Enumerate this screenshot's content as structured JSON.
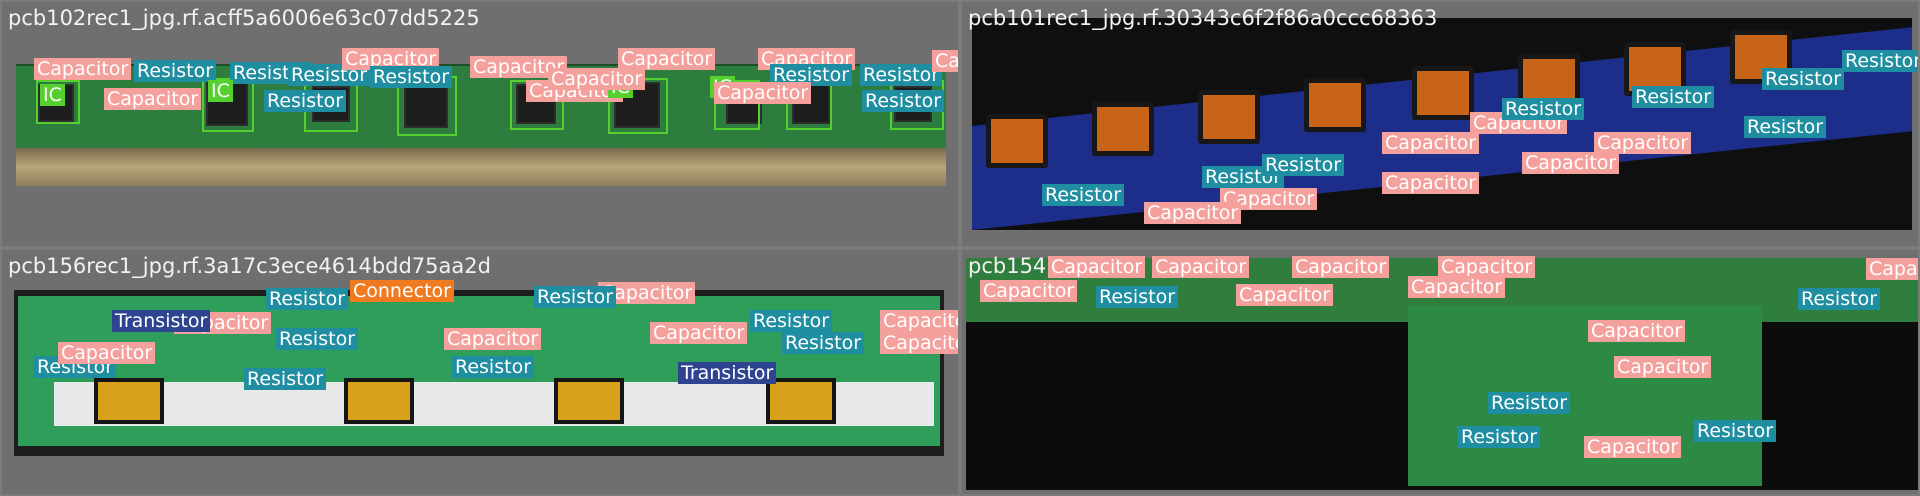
{
  "panels": [
    {
      "id": "p1",
      "title": "pcb102rec1_jpg.rf.acff5a6006e63c07dd5225",
      "labels": [
        {
          "cls": "cap",
          "text": "Capacitor"
        },
        {
          "cls": "res",
          "text": "Resistor"
        },
        {
          "cls": "res",
          "text": "Resistor"
        },
        {
          "cls": "res",
          "text": "Resistor"
        },
        {
          "cls": "cap",
          "text": "Capacitor"
        },
        {
          "cls": "cap",
          "text": "Capacitor"
        },
        {
          "cls": "cap",
          "text": "Capacitor"
        },
        {
          "cls": "cap",
          "text": "Capacitor"
        },
        {
          "cls": "res",
          "text": "Resistor"
        },
        {
          "cls": "res",
          "text": "Resistor"
        },
        {
          "cls": "cap",
          "text": "Capacitor"
        },
        {
          "cls": "res",
          "text": "Resistor"
        },
        {
          "cls": "cap",
          "text": "Capacitor"
        },
        {
          "cls": "ic",
          "text": "IC"
        },
        {
          "cls": "ic",
          "text": "IC"
        },
        {
          "cls": "ic",
          "text": "IC"
        },
        {
          "cls": "ic",
          "text": "IC"
        },
        {
          "cls": "cap",
          "text": "Capacitor"
        },
        {
          "cls": "res",
          "text": "Resistor"
        },
        {
          "cls": "cap",
          "text": "Capacitor"
        },
        {
          "cls": "res",
          "text": "Resistor"
        },
        {
          "cls": "cap",
          "text": "Capacitor"
        }
      ]
    },
    {
      "id": "p2",
      "title": "pcb101rec1_jpg.rf.30343c6f2f86a0ccc68363",
      "labels": [
        {
          "cls": "res",
          "text": "Resistor"
        },
        {
          "cls": "res",
          "text": "Resistor"
        },
        {
          "cls": "res",
          "text": "Resistor"
        },
        {
          "cls": "res",
          "text": "Resistor"
        },
        {
          "cls": "cap",
          "text": "Capacitor"
        },
        {
          "cls": "cap",
          "text": "Capacitor"
        },
        {
          "cls": "cap",
          "text": "Capacitor"
        },
        {
          "cls": "res",
          "text": "Resistor"
        },
        {
          "cls": "cap",
          "text": "Capacitor"
        },
        {
          "cls": "res",
          "text": "Resistor"
        },
        {
          "cls": "cap",
          "text": "Capacitor"
        },
        {
          "cls": "res",
          "text": "Resistor"
        },
        {
          "cls": "cap",
          "text": "Capacitor"
        },
        {
          "cls": "res",
          "text": "Resistor"
        },
        {
          "cls": "cap",
          "text": "Capacitor"
        }
      ]
    },
    {
      "id": "p3",
      "title": "pcb156rec1_jpg.rf.3a17c3ece4614bdd75aa2d",
      "labels": [
        {
          "cls": "con",
          "text": "Connector"
        },
        {
          "cls": "res",
          "text": "Resistor"
        },
        {
          "cls": "cap",
          "text": "Capacitor"
        },
        {
          "cls": "res",
          "text": "Resistor"
        },
        {
          "cls": "cap",
          "text": "Capacitor"
        },
        {
          "cls": "res",
          "text": "Resistor"
        },
        {
          "cls": "cap",
          "text": "Capacitor"
        },
        {
          "cls": "res",
          "text": "Resistor"
        },
        {
          "cls": "cap",
          "text": "Capacitor"
        },
        {
          "cls": "res",
          "text": "Resistor"
        },
        {
          "cls": "res",
          "text": "Resistor"
        },
        {
          "cls": "tra",
          "text": "Transistor"
        },
        {
          "cls": "cap",
          "text": "Capacitor"
        },
        {
          "cls": "res",
          "text": "Resistor"
        },
        {
          "cls": "cap",
          "text": "Capacitor"
        },
        {
          "cls": "tra",
          "text": "Transistor"
        },
        {
          "cls": "res",
          "text": "Resistor"
        },
        {
          "cls": "cap",
          "text": "Capacitor"
        }
      ]
    },
    {
      "id": "p4",
      "title": "pcb154",
      "labels": [
        {
          "cls": "cap",
          "text": "Capacitor"
        },
        {
          "cls": "cap",
          "text": "Capacitor"
        },
        {
          "cls": "cap",
          "text": "Capacitor"
        },
        {
          "cls": "cap",
          "text": "Capacitor"
        },
        {
          "cls": "cap",
          "text": "Capacitor"
        },
        {
          "cls": "res",
          "text": "Resistor"
        },
        {
          "cls": "cap",
          "text": "Capacitor"
        },
        {
          "cls": "cap",
          "text": "Capacitor"
        },
        {
          "cls": "res",
          "text": "Resistor"
        },
        {
          "cls": "cap",
          "text": "Capacitor"
        },
        {
          "cls": "cap",
          "text": "Capacitor"
        },
        {
          "cls": "res",
          "text": "Resistor"
        },
        {
          "cls": "res",
          "text": "Resistor"
        },
        {
          "cls": "cap",
          "text": "Capacitor"
        },
        {
          "cls": "res",
          "text": "Resistor"
        },
        {
          "cls": "cap",
          "text": "Capacitor"
        }
      ]
    }
  ],
  "colors": {
    "Capacitor": "#f4a09c",
    "Resistor": "#1f8ea0",
    "Connector": "#ef7a1f",
    "Transistor": "#2f4490",
    "IC": "#55d02e"
  }
}
